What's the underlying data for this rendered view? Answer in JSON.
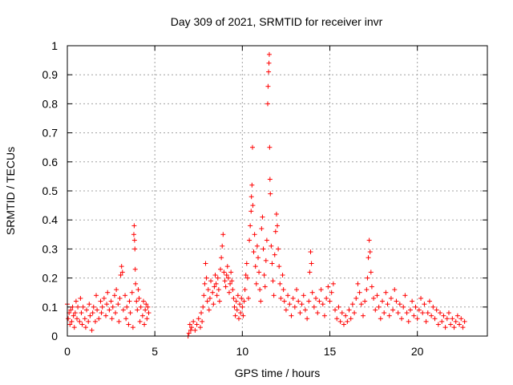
{
  "chart_data": {
    "type": "scatter",
    "title": "Day 309 of 2021, SRMTID for receiver invr",
    "xlabel": "GPS time / hours",
    "ylabel": "SRMTID / TECUs",
    "xlim": [
      0,
      24
    ],
    "ylim": [
      0,
      1
    ],
    "xticks": [
      0,
      5,
      10,
      15,
      20
    ],
    "xtick_labels": [
      "0",
      "5",
      "10",
      "15",
      "20"
    ],
    "yticks": [
      0,
      0.1,
      0.2,
      0.3,
      0.4,
      0.5,
      0.6,
      0.7,
      0.8,
      0.9,
      1
    ],
    "ytick_labels": [
      "0",
      "0.1",
      "0.2",
      "0.3",
      "0.4",
      "0.5",
      "0.6",
      "0.7",
      "0.8",
      "0.9",
      "1"
    ],
    "grid": true,
    "marker": "+",
    "color": "#ff0000",
    "series": [
      {
        "name": "SRMTID",
        "points": [
          [
            0.0,
            0.11
          ],
          [
            0.05,
            0.06
          ],
          [
            0.1,
            0.08
          ],
          [
            0.15,
            0.04
          ],
          [
            0.2,
            0.09
          ],
          [
            0.25,
            0.05
          ],
          [
            0.3,
            0.1
          ],
          [
            0.35,
            0.07
          ],
          [
            0.4,
            0.03
          ],
          [
            0.45,
            0.08
          ],
          [
            0.5,
            0.12
          ],
          [
            0.55,
            0.06
          ],
          [
            0.6,
            0.1
          ],
          [
            0.7,
            0.05
          ],
          [
            0.75,
            0.13
          ],
          [
            0.8,
            0.08
          ],
          [
            0.85,
            0.04
          ],
          [
            0.9,
            0.1
          ],
          [
            1.0,
            0.06
          ],
          [
            1.05,
            0.03
          ],
          [
            1.1,
            0.09
          ],
          [
            1.2,
            0.05
          ],
          [
            1.25,
            0.11
          ],
          [
            1.3,
            0.07
          ],
          [
            1.4,
            0.02
          ],
          [
            1.45,
            0.08
          ],
          [
            1.5,
            0.1
          ],
          [
            1.6,
            0.05
          ],
          [
            1.65,
            0.14
          ],
          [
            1.7,
            0.09
          ],
          [
            1.8,
            0.06
          ],
          [
            1.9,
            0.12
          ],
          [
            1.95,
            0.08
          ],
          [
            2.0,
            0.1
          ],
          [
            2.1,
            0.13
          ],
          [
            2.2,
            0.07
          ],
          [
            2.25,
            0.11
          ],
          [
            2.3,
            0.15
          ],
          [
            2.4,
            0.09
          ],
          [
            2.5,
            0.12
          ],
          [
            2.55,
            0.06
          ],
          [
            2.6,
            0.1
          ],
          [
            2.7,
            0.14
          ],
          [
            2.75,
            0.08
          ],
          [
            2.8,
            0.16
          ],
          [
            2.9,
            0.11
          ],
          [
            2.95,
            0.05
          ],
          [
            3.0,
            0.13
          ],
          [
            3.05,
            0.21
          ],
          [
            3.1,
            0.24
          ],
          [
            3.15,
            0.22
          ],
          [
            3.2,
            0.09
          ],
          [
            3.3,
            0.14
          ],
          [
            3.35,
            0.06
          ],
          [
            3.4,
            0.1
          ],
          [
            3.5,
            0.04
          ],
          [
            3.55,
            0.12
          ],
          [
            3.6,
            0.08
          ],
          [
            3.7,
            0.15
          ],
          [
            3.75,
            0.03
          ],
          [
            3.8,
            0.35
          ],
          [
            3.82,
            0.38
          ],
          [
            3.84,
            0.33
          ],
          [
            3.86,
            0.3
          ],
          [
            3.88,
            0.23
          ],
          [
            3.9,
            0.18
          ],
          [
            3.95,
            0.12
          ],
          [
            4.0,
            0.09
          ],
          [
            4.05,
            0.16
          ],
          [
            4.1,
            0.13
          ],
          [
            4.15,
            0.05
          ],
          [
            4.2,
            0.1
          ],
          [
            4.3,
            0.07
          ],
          [
            4.35,
            0.12
          ],
          [
            4.4,
            0.04
          ],
          [
            4.45,
            0.09
          ],
          [
            4.5,
            0.11
          ],
          [
            4.55,
            0.06
          ],
          [
            4.6,
            0.1
          ],
          [
            4.65,
            0.08
          ],
          [
            6.9,
            0.0
          ],
          [
            6.95,
            0.01
          ],
          [
            7.0,
            0.04
          ],
          [
            7.05,
            0.02
          ],
          [
            7.1,
            0.03
          ],
          [
            7.2,
            0.05
          ],
          [
            7.3,
            0.02
          ],
          [
            7.4,
            0.04
          ],
          [
            7.5,
            0.06
          ],
          [
            7.6,
            0.03
          ],
          [
            7.65,
            0.08
          ],
          [
            7.7,
            0.05
          ],
          [
            7.75,
            0.1
          ],
          [
            7.8,
            0.14
          ],
          [
            7.85,
            0.18
          ],
          [
            7.9,
            0.25
          ],
          [
            7.95,
            0.2
          ],
          [
            8.0,
            0.12
          ],
          [
            8.05,
            0.16
          ],
          [
            8.1,
            0.09
          ],
          [
            8.15,
            0.13
          ],
          [
            8.2,
            0.19
          ],
          [
            8.3,
            0.15
          ],
          [
            8.35,
            0.11
          ],
          [
            8.4,
            0.17
          ],
          [
            8.45,
            0.21
          ],
          [
            8.5,
            0.18
          ],
          [
            8.55,
            0.14
          ],
          [
            8.6,
            0.2
          ],
          [
            8.65,
            0.16
          ],
          [
            8.7,
            0.12
          ],
          [
            8.75,
            0.23
          ],
          [
            8.8,
            0.27
          ],
          [
            8.85,
            0.31
          ],
          [
            8.9,
            0.35
          ],
          [
            8.95,
            0.22
          ],
          [
            9.0,
            0.19
          ],
          [
            9.05,
            0.17
          ],
          [
            9.1,
            0.21
          ],
          [
            9.15,
            0.24
          ],
          [
            9.2,
            0.2
          ],
          [
            9.25,
            0.15
          ],
          [
            9.3,
            0.18
          ],
          [
            9.35,
            0.22
          ],
          [
            9.4,
            0.19
          ],
          [
            9.45,
            0.16
          ],
          [
            9.5,
            0.13
          ],
          [
            9.55,
            0.1
          ],
          [
            9.6,
            0.07
          ],
          [
            9.65,
            0.12
          ],
          [
            9.7,
            0.09
          ],
          [
            9.75,
            0.14
          ],
          [
            9.8,
            0.06
          ],
          [
            9.85,
            0.11
          ],
          [
            9.9,
            0.08
          ],
          [
            9.95,
            0.13
          ],
          [
            10.0,
            0.1
          ],
          [
            10.05,
            0.07
          ],
          [
            10.1,
            0.12
          ],
          [
            10.15,
            0.16
          ],
          [
            10.2,
            0.21
          ],
          [
            10.25,
            0.25
          ],
          [
            10.3,
            0.2
          ],
          [
            10.35,
            0.13
          ],
          [
            10.4,
            0.33
          ],
          [
            10.45,
            0.38
          ],
          [
            10.5,
            0.43
          ],
          [
            10.52,
            0.48
          ],
          [
            10.55,
            0.52
          ],
          [
            10.58,
            0.65
          ],
          [
            10.6,
            0.45
          ],
          [
            10.65,
            0.29
          ],
          [
            10.7,
            0.35
          ],
          [
            10.75,
            0.24
          ],
          [
            10.8,
            0.18
          ],
          [
            10.85,
            0.31
          ],
          [
            10.9,
            0.27
          ],
          [
            10.95,
            0.22
          ],
          [
            11.0,
            0.16
          ],
          [
            11.05,
            0.12
          ],
          [
            11.1,
            0.37
          ],
          [
            11.15,
            0.41
          ],
          [
            11.2,
            0.3
          ],
          [
            11.25,
            0.21
          ],
          [
            11.3,
            0.17
          ],
          [
            11.35,
            0.26
          ],
          [
            11.4,
            0.33
          ],
          [
            11.45,
            0.8
          ],
          [
            11.47,
            0.86
          ],
          [
            11.5,
            0.91
          ],
          [
            11.52,
            0.94
          ],
          [
            11.54,
            0.97
          ],
          [
            11.56,
            0.65
          ],
          [
            11.58,
            0.54
          ],
          [
            11.6,
            0.49
          ],
          [
            11.65,
            0.31
          ],
          [
            11.7,
            0.25
          ],
          [
            11.75,
            0.19
          ],
          [
            11.8,
            0.14
          ],
          [
            11.85,
            0.28
          ],
          [
            11.9,
            0.36
          ],
          [
            11.95,
            0.42
          ],
          [
            12.0,
            0.38
          ],
          [
            12.05,
            0.3
          ],
          [
            12.1,
            0.24
          ],
          [
            12.15,
            0.18
          ],
          [
            12.2,
            0.13
          ],
          [
            12.3,
            0.21
          ],
          [
            12.35,
            0.16
          ],
          [
            12.4,
            0.12
          ],
          [
            12.5,
            0.09
          ],
          [
            12.6,
            0.14
          ],
          [
            12.7,
            0.11
          ],
          [
            12.8,
            0.07
          ],
          [
            12.9,
            0.13
          ],
          [
            13.0,
            0.1
          ],
          [
            13.1,
            0.16
          ],
          [
            13.2,
            0.12
          ],
          [
            13.3,
            0.08
          ],
          [
            13.4,
            0.11
          ],
          [
            13.5,
            0.14
          ],
          [
            13.6,
            0.09
          ],
          [
            13.7,
            0.06
          ],
          [
            13.8,
            0.12
          ],
          [
            13.85,
            0.22
          ],
          [
            13.9,
            0.29
          ],
          [
            13.95,
            0.25
          ],
          [
            14.0,
            0.15
          ],
          [
            14.1,
            0.1
          ],
          [
            14.2,
            0.13
          ],
          [
            14.3,
            0.08
          ],
          [
            14.4,
            0.12
          ],
          [
            14.5,
            0.16
          ],
          [
            14.6,
            0.11
          ],
          [
            14.7,
            0.07
          ],
          [
            14.8,
            0.13
          ],
          [
            14.9,
            0.17
          ],
          [
            15.0,
            0.12
          ],
          [
            15.1,
            0.15
          ],
          [
            15.2,
            0.18
          ],
          [
            15.3,
            0.09
          ],
          [
            15.4,
            0.06
          ],
          [
            15.5,
            0.1
          ],
          [
            15.6,
            0.05
          ],
          [
            15.7,
            0.08
          ],
          [
            15.8,
            0.04
          ],
          [
            15.9,
            0.07
          ],
          [
            16.0,
            0.05
          ],
          [
            16.1,
            0.09
          ],
          [
            16.2,
            0.06
          ],
          [
            16.3,
            0.11
          ],
          [
            16.4,
            0.08
          ],
          [
            16.5,
            0.13
          ],
          [
            16.6,
            0.18
          ],
          [
            16.7,
            0.15
          ],
          [
            16.8,
            0.11
          ],
          [
            16.9,
            0.07
          ],
          [
            17.0,
            0.12
          ],
          [
            17.1,
            0.16
          ],
          [
            17.15,
            0.2
          ],
          [
            17.2,
            0.27
          ],
          [
            17.25,
            0.33
          ],
          [
            17.3,
            0.29
          ],
          [
            17.35,
            0.22
          ],
          [
            17.4,
            0.17
          ],
          [
            17.5,
            0.13
          ],
          [
            17.6,
            0.09
          ],
          [
            17.7,
            0.14
          ],
          [
            17.8,
            0.1
          ],
          [
            17.9,
            0.06
          ],
          [
            18.0,
            0.12
          ],
          [
            18.1,
            0.08
          ],
          [
            18.2,
            0.15
          ],
          [
            18.3,
            0.11
          ],
          [
            18.4,
            0.07
          ],
          [
            18.5,
            0.13
          ],
          [
            18.6,
            0.09
          ],
          [
            18.7,
            0.16
          ],
          [
            18.8,
            0.12
          ],
          [
            18.9,
            0.08
          ],
          [
            19.0,
            0.11
          ],
          [
            19.1,
            0.06
          ],
          [
            19.2,
            0.1
          ],
          [
            19.3,
            0.14
          ],
          [
            19.4,
            0.08
          ],
          [
            19.5,
            0.05
          ],
          [
            19.6,
            0.09
          ],
          [
            19.7,
            0.12
          ],
          [
            19.8,
            0.07
          ],
          [
            19.9,
            0.1
          ],
          [
            20.0,
            0.06
          ],
          [
            20.1,
            0.09
          ],
          [
            20.2,
            0.13
          ],
          [
            20.3,
            0.08
          ],
          [
            20.4,
            0.11
          ],
          [
            20.5,
            0.05
          ],
          [
            20.6,
            0.08
          ],
          [
            20.7,
            0.12
          ],
          [
            20.8,
            0.07
          ],
          [
            20.9,
            0.1
          ],
          [
            21.0,
            0.06
          ],
          [
            21.1,
            0.09
          ],
          [
            21.2,
            0.04
          ],
          [
            21.3,
            0.08
          ],
          [
            21.4,
            0.05
          ],
          [
            21.5,
            0.07
          ],
          [
            21.6,
            0.03
          ],
          [
            21.7,
            0.06
          ],
          [
            21.8,
            0.08
          ],
          [
            21.9,
            0.04
          ],
          [
            22.0,
            0.06
          ],
          [
            22.1,
            0.03
          ],
          [
            22.2,
            0.05
          ],
          [
            22.3,
            0.07
          ],
          [
            22.4,
            0.04
          ],
          [
            22.5,
            0.06
          ],
          [
            22.6,
            0.03
          ],
          [
            22.7,
            0.05
          ]
        ]
      }
    ]
  }
}
